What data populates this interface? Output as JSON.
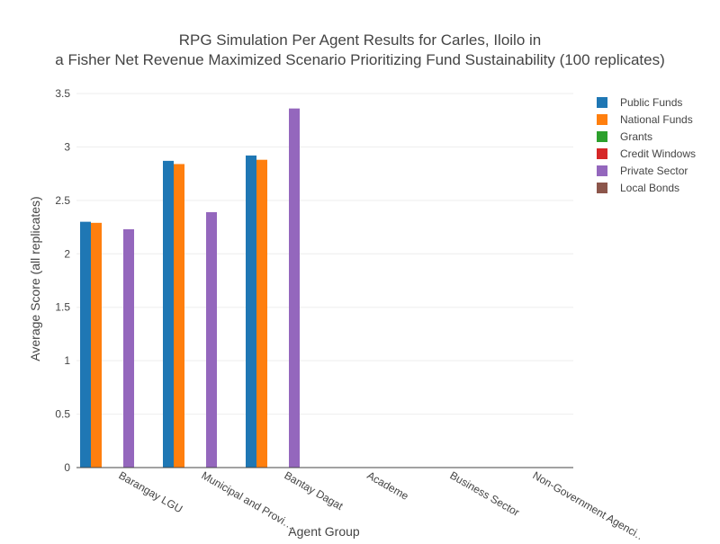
{
  "chart_data": {
    "type": "bar",
    "title_lines": [
      "RPG Simulation Per Agent Results for Carles, Iloilo in",
      "a Fisher Net Revenue Maximized Scenario Prioritizing Fund Sustainability (100 replicates)"
    ],
    "xlabel": "Agent Group",
    "ylabel": "Average Score (all replicates)",
    "ylim": [
      0,
      3.5
    ],
    "yticks": [
      0,
      0.5,
      1,
      1.5,
      2,
      2.5,
      3,
      3.5
    ],
    "ytick_labels": [
      "0",
      "0.5",
      "1",
      "1.5",
      "2",
      "2.5",
      "3",
      "3.5"
    ],
    "grid": true,
    "legend_position": "top-right",
    "categories": [
      "Barangay LGU",
      "Municipal and Provincial",
      "Bantay Dagat",
      "Academe",
      "Business Sector",
      "Non-Government Agencies"
    ],
    "category_labels_visible": [
      "Barangay LGU",
      "Municipal and Provi…",
      "Bantay Dagat",
      "Academe",
      "Business Sector",
      "Non-Government Agenci…"
    ],
    "series": [
      {
        "name": "Public Funds",
        "color": "#1f77b4",
        "values": [
          2.3,
          2.87,
          2.92,
          null,
          null,
          null
        ]
      },
      {
        "name": "National Funds",
        "color": "#ff7f0e",
        "values": [
          2.29,
          2.84,
          2.88,
          null,
          null,
          null
        ]
      },
      {
        "name": "Grants",
        "color": "#2ca02c",
        "values": [
          null,
          null,
          null,
          null,
          null,
          null
        ]
      },
      {
        "name": "Credit Windows",
        "color": "#d62728",
        "values": [
          null,
          null,
          null,
          null,
          null,
          null
        ]
      },
      {
        "name": "Private Sector",
        "color": "#9467bd",
        "values": [
          2.23,
          2.39,
          3.36,
          null,
          null,
          null
        ]
      },
      {
        "name": "Local Bonds",
        "color": "#8c564b",
        "values": [
          null,
          null,
          null,
          null,
          null,
          null
        ]
      }
    ]
  }
}
